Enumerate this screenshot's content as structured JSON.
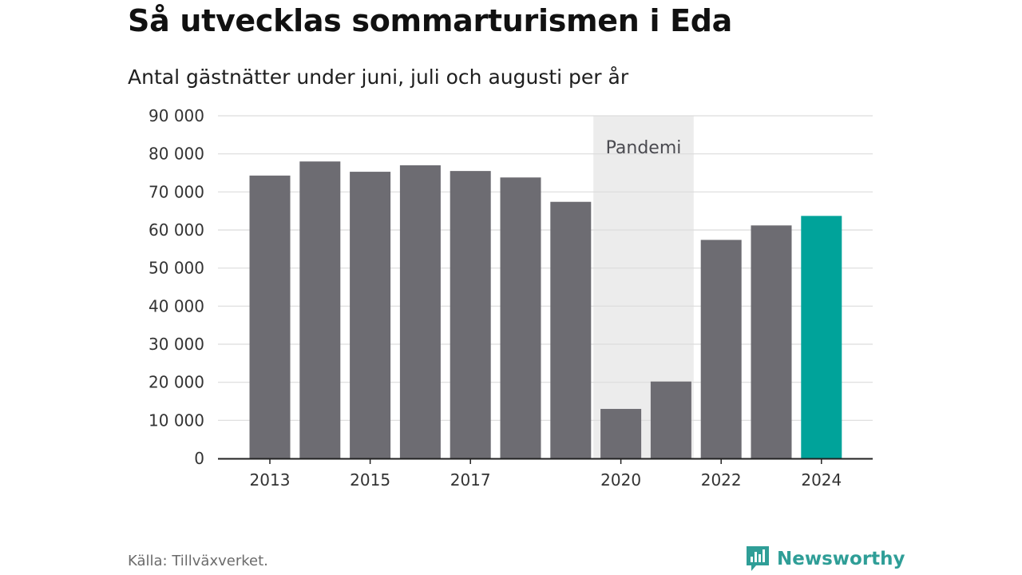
{
  "header": {
    "title": "Så utvecklas sommarturismen i Eda",
    "subtitle": "Antal gästnätter under juni, juli och augusti per år"
  },
  "footer": {
    "source": "Källa: Tillväxverket.",
    "brand": "Newsworthy",
    "brand_icon": "newsworthy-logo-icon"
  },
  "colors": {
    "bar_default": "#6d6c72",
    "bar_highlight": "#00a39a",
    "shade": "#ececec",
    "grid": "#dcdcdc",
    "axis": "#222222",
    "brand": "#2f9e97"
  },
  "chart_data": {
    "type": "bar",
    "categories": [
      "2013",
      "2014",
      "2015",
      "2016",
      "2017",
      "2018",
      "2019",
      "2020",
      "2021",
      "2022",
      "2023",
      "2024"
    ],
    "values": [
      74300,
      78000,
      75300,
      77000,
      75500,
      73800,
      67400,
      13000,
      20200,
      57400,
      61200,
      63700
    ],
    "highlight": "2024",
    "x_tick_labels": [
      "2013",
      "2015",
      "2017",
      "2020",
      "2022",
      "2024"
    ],
    "y_ticks": [
      "0",
      "10 000",
      "20 000",
      "30 000",
      "40 000",
      "50 000",
      "60 000",
      "70 000",
      "80 000",
      "90 000"
    ],
    "ylim": [
      0,
      90000
    ],
    "grid": true,
    "annotation": {
      "label": "Pandemi",
      "from": "2020",
      "to": "2021"
    },
    "title": "Så utvecklas sommarturismen i Eda",
    "subtitle": "Antal gästnätter under juni, juli och augusti per år",
    "xlabel": "",
    "ylabel": ""
  }
}
